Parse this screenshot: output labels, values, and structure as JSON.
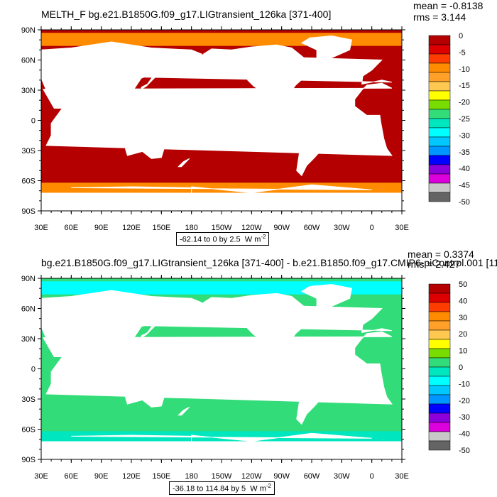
{
  "panels": [
    {
      "title": "MELTH_F bg.e21.B1850G.f09_g17.LIGtransient_126ka [371-400]",
      "mean": "mean = -0.8138",
      "rms": "rms = 3.144",
      "range_text": "-62.14 to 0 by 2.5",
      "units": "W m",
      "units_exp": "-2",
      "colorbar": {
        "labels": [
          "0",
          "-5",
          "-10",
          "-15",
          "-20",
          "-25",
          "-30",
          "-35",
          "-40",
          "-45",
          "-50"
        ],
        "colors": [
          "#b40000",
          "#dc0000",
          "#ff3c00",
          "#ff8c00",
          "#ffa028",
          "#ffc850",
          "#ffff00",
          "#78dc00",
          "#32dc78",
          "#00e6be",
          "#00ffff",
          "#00c8ff",
          "#0096ff",
          "#0000ff",
          "#8c00dc",
          "#dc00dc",
          "#c8c8c8",
          "#646464"
        ]
      },
      "ocean_color": "#b40000",
      "antarctic_band_color": "#ff8c00",
      "arctic_color": "#ff8c00"
    },
    {
      "title": "bg.e21.B1850G.f09_g17.LIGtransient_126ka [371-400] - b.e21.B1850.f09_g17.CMIP6-piControl.001 [11",
      "mean": "mean = 0.3374",
      "rms": "rms = 2.427",
      "range_text": "-36.18 to 114.84 by 5",
      "units": "W m",
      "units_exp": "-2",
      "colorbar": {
        "labels": [
          "50",
          "40",
          "30",
          "20",
          "10",
          "0",
          "-10",
          "-20",
          "-30",
          "-40",
          "-50"
        ],
        "colors": [
          "#b40000",
          "#dc0000",
          "#ff3c00",
          "#ff8c00",
          "#ffa028",
          "#ffc850",
          "#ffff00",
          "#78dc00",
          "#32dc78",
          "#00e6be",
          "#00ffff",
          "#00c8ff",
          "#0096ff",
          "#0000ff",
          "#8c00dc",
          "#dc00dc",
          "#c8c8c8",
          "#646464"
        ]
      },
      "ocean_color": "#32dc78",
      "antarctic_band_color": "#00e6be",
      "arctic_color": "#00ffff"
    }
  ],
  "axes": {
    "lat_labels": [
      "90N",
      "60N",
      "30N",
      "0",
      "30S",
      "60S",
      "90S"
    ],
    "lon_labels": [
      "30E",
      "60E",
      "90E",
      "120E",
      "150E",
      "180",
      "150W",
      "120W",
      "90W",
      "60W",
      "30W",
      "0",
      "30E"
    ]
  }
}
